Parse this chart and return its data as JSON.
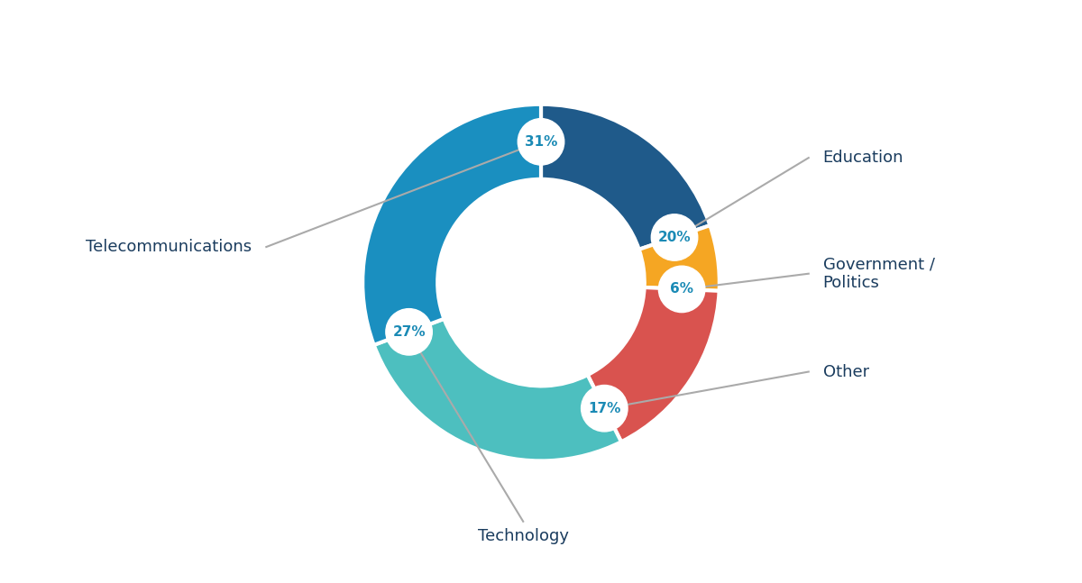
{
  "labels": [
    "Education",
    "Government /\nPolitics",
    "Other",
    "Technology",
    "Telecommunications"
  ],
  "values": [
    20,
    6,
    17,
    27,
    31
  ],
  "colors": [
    "#1f5a8a",
    "#f5a623",
    "#d9534f",
    "#4dbfbf",
    "#1a8fc0"
  ],
  "pct_labels": [
    "20%",
    "6%",
    "17%",
    "27%",
    "31%"
  ],
  "bg_color": "#ffffff",
  "pct_color": "#1a8ab5",
  "annotation_color": "#1a3c5e",
  "line_color": "#aaaaaa",
  "startangle": 90,
  "donut_width": 0.42
}
